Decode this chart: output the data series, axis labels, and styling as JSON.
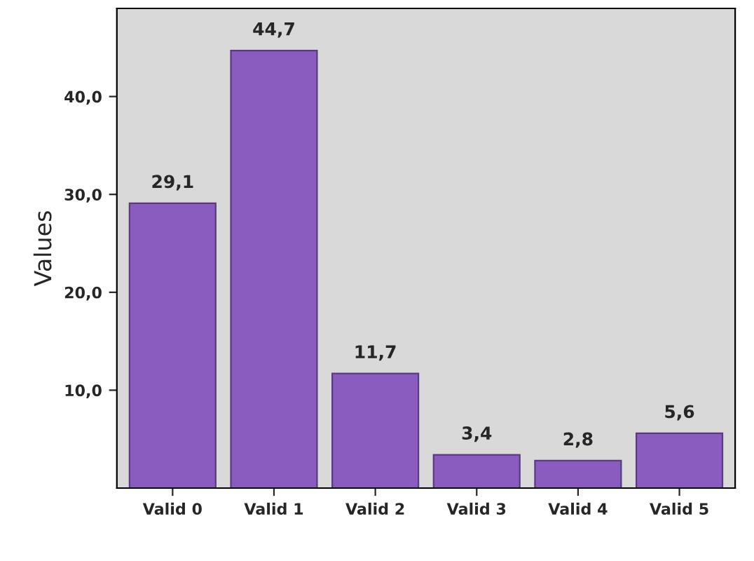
{
  "chart_data": {
    "type": "bar",
    "ylabel": "Values",
    "categories": [
      "Valid 0",
      "Valid 1",
      "Valid 2",
      "Valid 3",
      "Valid 4",
      "Valid 5"
    ],
    "values": [
      29.1,
      44.7,
      11.7,
      3.4,
      2.8,
      5.6
    ],
    "value_labels": [
      "29,1",
      "44,7",
      "11,7",
      "3,4",
      "2,8",
      "5,6"
    ],
    "color": "#8a5cc0",
    "ylim": [
      0,
      49
    ],
    "yticks": [
      {
        "value": 10,
        "label": "10,0"
      },
      {
        "value": 20,
        "label": "20,0"
      },
      {
        "value": 30,
        "label": "30,0"
      },
      {
        "value": 40,
        "label": "40,0"
      }
    ],
    "grid": false
  }
}
